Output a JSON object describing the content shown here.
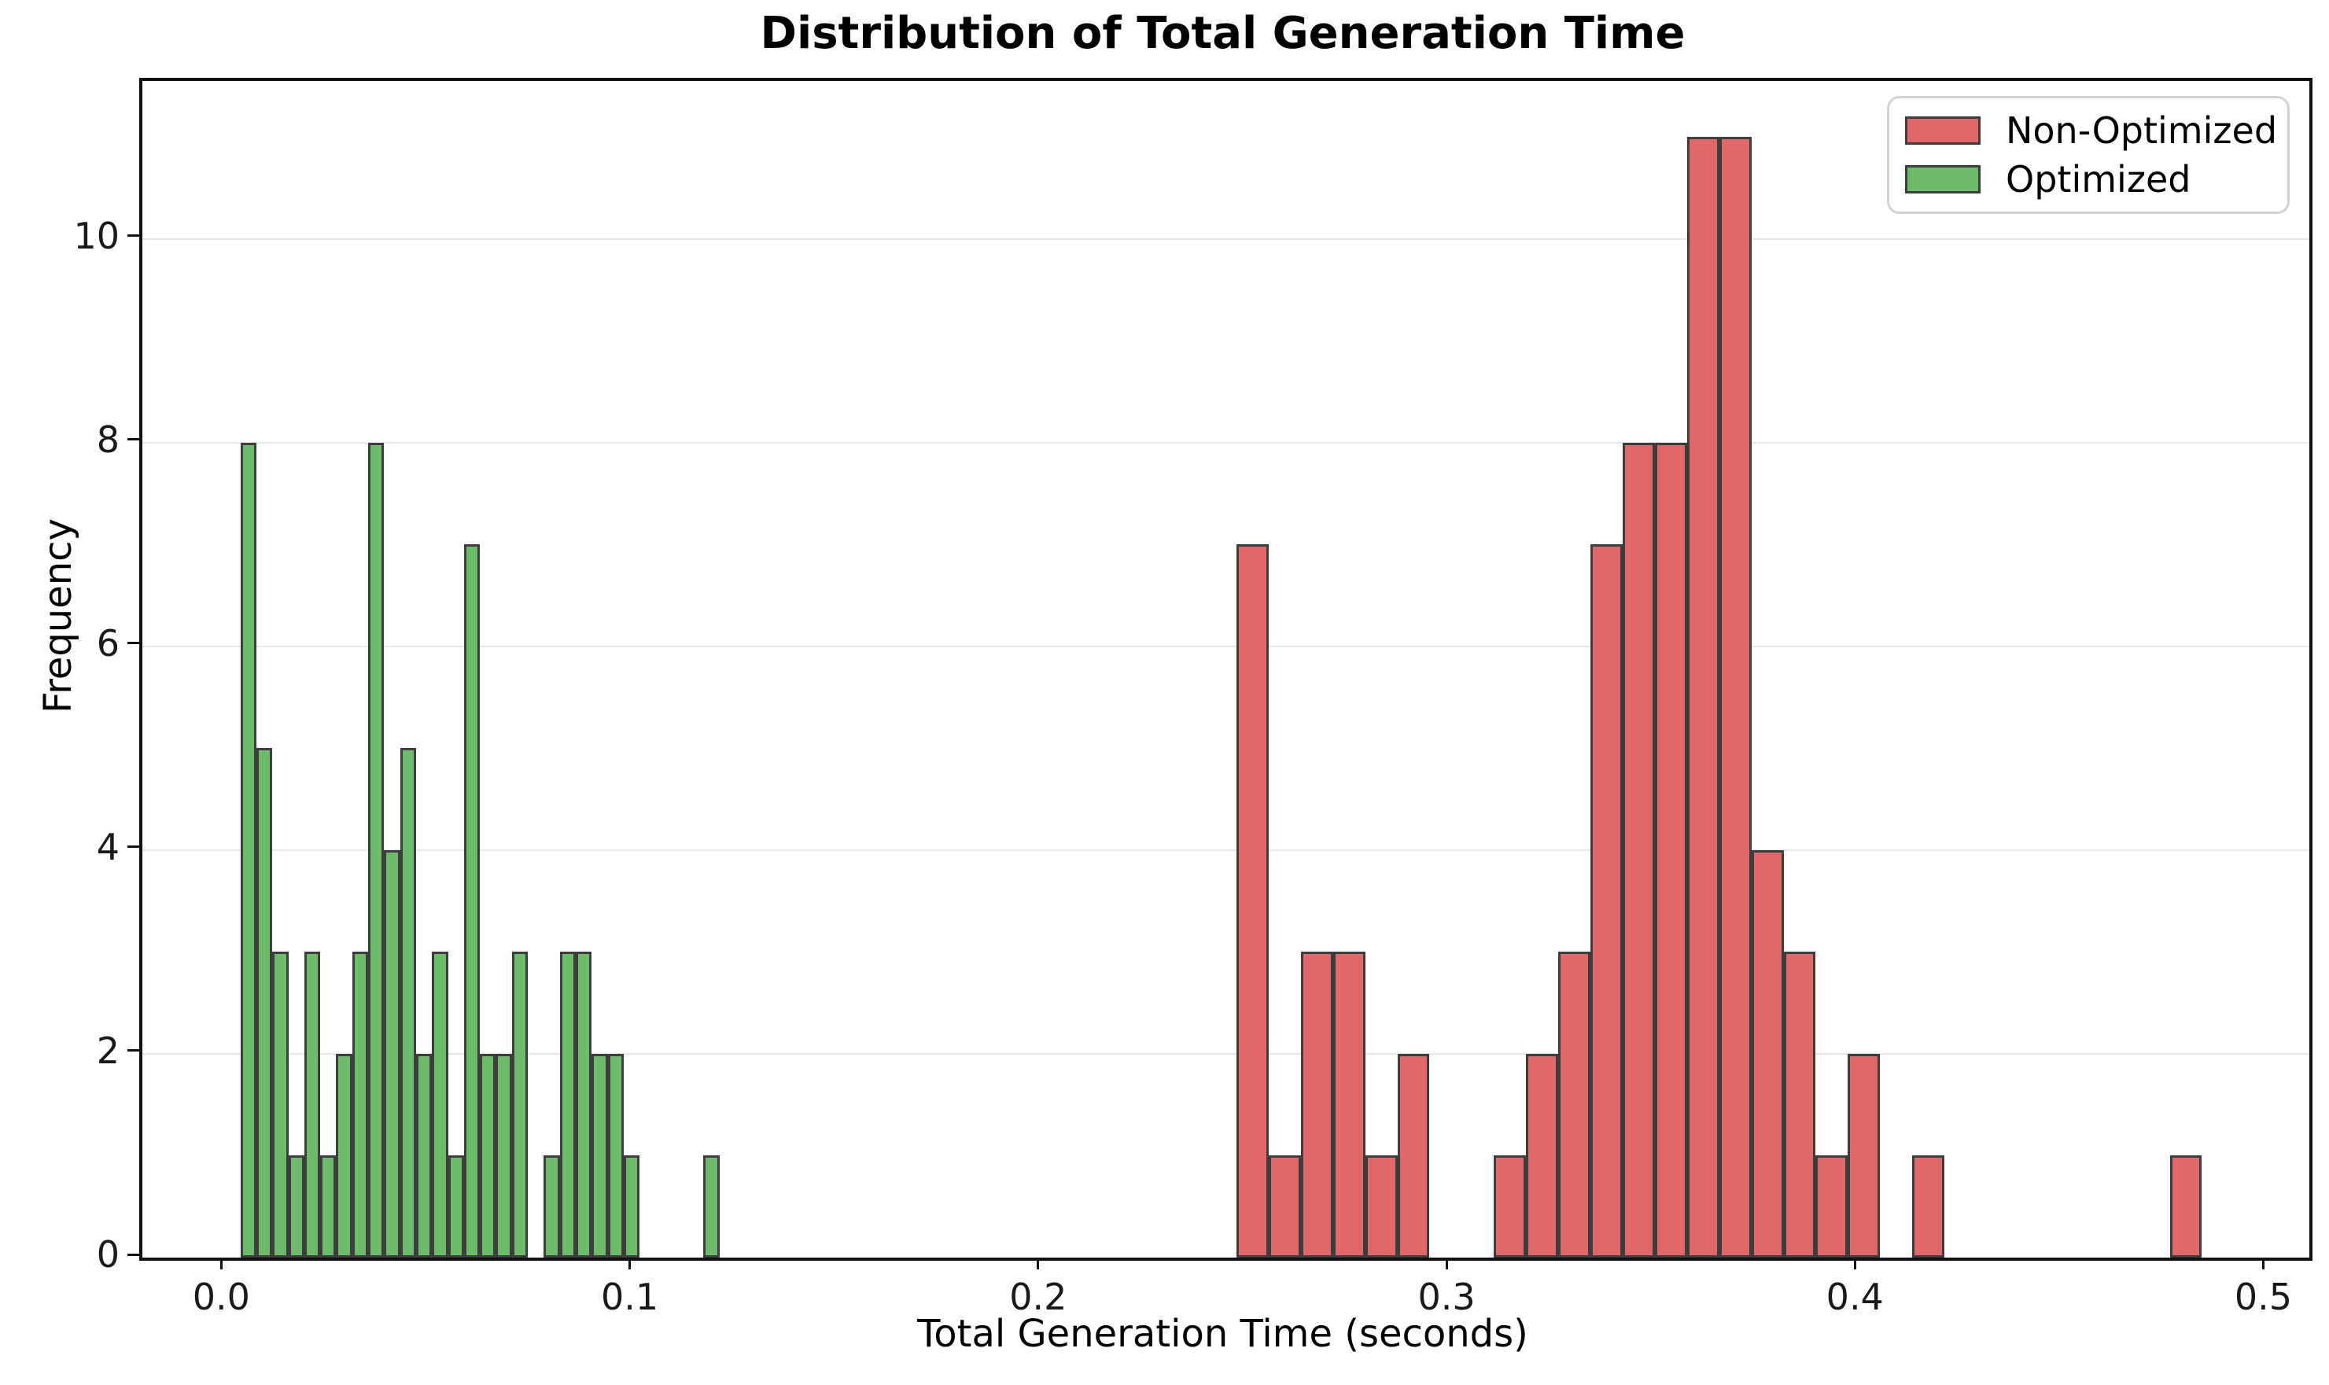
{
  "title": "Distribution of Total Generation Time",
  "x_axis_label": "Total Generation Time (seconds)",
  "y_axis_label": "Frequency",
  "colors": {
    "non_optimized_fill": "#e16869",
    "optimized_fill": "#6cbc6c",
    "bar_edge": "#3d3d3d",
    "grid": "#e7e7e7",
    "spine": "#111111"
  },
  "chart_data": {
    "type": "bar",
    "subtype": "histogram",
    "title": "Distribution of Total Generation Time",
    "xlabel": "Total Generation Time (seconds)",
    "ylabel": "Frequency",
    "xlim": [
      -0.0201,
      0.5105
    ],
    "ylim": [
      0,
      11.55
    ],
    "grid": "horizontal",
    "legend_position": "upper right",
    "x_ticks": [
      {
        "value": 0.0,
        "label": "0.0"
      },
      {
        "value": 0.1,
        "label": "0.1"
      },
      {
        "value": 0.2,
        "label": "0.2"
      },
      {
        "value": 0.3,
        "label": "0.3"
      },
      {
        "value": 0.4,
        "label": "0.4"
      },
      {
        "value": 0.5,
        "label": "0.5"
      }
    ],
    "y_ticks": [
      {
        "value": 0,
        "label": "0"
      },
      {
        "value": 2,
        "label": "2"
      },
      {
        "value": 4,
        "label": "4"
      },
      {
        "value": 6,
        "label": "6"
      },
      {
        "value": 8,
        "label": "8"
      },
      {
        "value": 10,
        "label": "10"
      }
    ],
    "series": [
      {
        "name": "Non-Optimized",
        "color": "#e16869",
        "bin_start": 0.2478,
        "bin_width": 0.00788,
        "counts": [
          7,
          1,
          3,
          3,
          1,
          2,
          0,
          0,
          1,
          2,
          3,
          7,
          8,
          8,
          11,
          11,
          4,
          3,
          1,
          2,
          0,
          1,
          0,
          0,
          0,
          0,
          0,
          0,
          0,
          1
        ]
      },
      {
        "name": "Optimized",
        "color": "#6cbc6c",
        "bin_start": 0.0039,
        "bin_width": 0.00391,
        "counts": [
          8,
          5,
          3,
          1,
          3,
          1,
          2,
          3,
          8,
          4,
          5,
          2,
          3,
          1,
          7,
          2,
          2,
          3,
          0,
          1,
          3,
          3,
          2,
          2,
          1,
          0,
          0,
          0,
          0,
          1
        ]
      }
    ]
  },
  "legend": {
    "items": [
      {
        "label": "Non-Optimized",
        "color": "#e16869"
      },
      {
        "label": "Optimized",
        "color": "#6cbc6c"
      }
    ]
  }
}
